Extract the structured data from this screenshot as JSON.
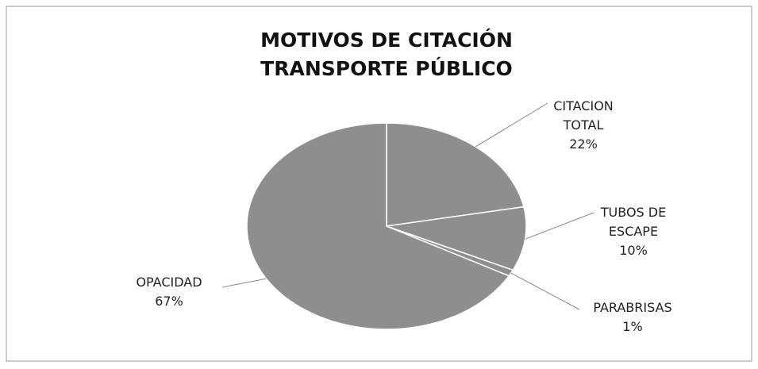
{
  "chart_data": {
    "type": "pie",
    "title": "MOTIVOS DE CITACIÓN",
    "subtitle": "TRANSPORTE PÚBLICO",
    "categories": [
      "CITACION TOTAL",
      "TUBOS DE ESCAPE",
      "PARABRISAS",
      "OPACIDAD"
    ],
    "values": [
      22,
      10,
      1,
      67
    ],
    "value_labels": [
      "22%",
      "10%",
      "1%",
      "67%"
    ],
    "color": "#8e8e8e"
  }
}
